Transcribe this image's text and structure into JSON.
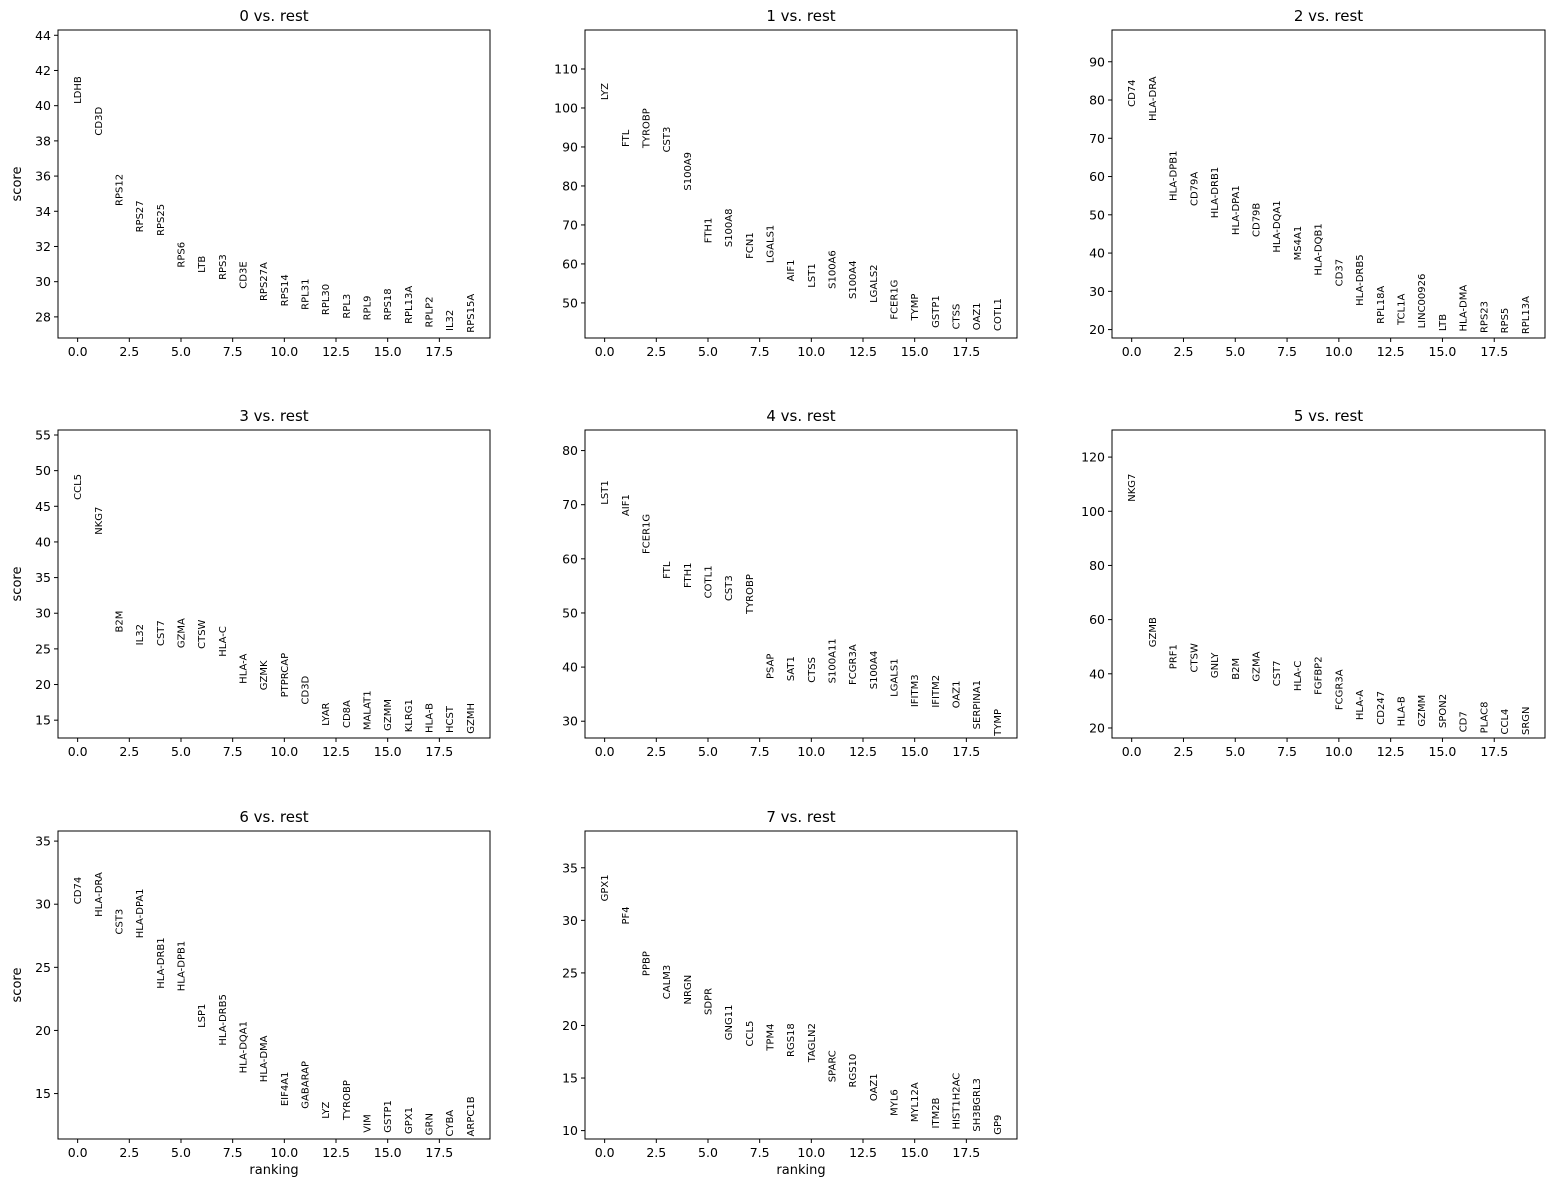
{
  "chart_data": [
    {
      "type": "scatter",
      "title": "0 vs. rest",
      "ylabel": "score",
      "xlabel": "",
      "xlim": [
        -0.95,
        19.95
      ],
      "ylim": [
        26.8,
        44.3
      ],
      "xticks": [
        "0.0",
        "2.5",
        "5.0",
        "7.5",
        "10.0",
        "12.5",
        "15.0",
        "17.5"
      ],
      "xtick_values": [
        0,
        2.5,
        5,
        7.5,
        10,
        12.5,
        15,
        17.5
      ],
      "yticks": [
        "28",
        "30",
        "32",
        "34",
        "36",
        "38",
        "40",
        "42",
        "44"
      ],
      "ytick_values": [
        28,
        30,
        32,
        34,
        36,
        38,
        40,
        42,
        44
      ],
      "genes": [
        "LDHB",
        "CD3D",
        "RPS12",
        "RPS27",
        "RPS25",
        "RPS6",
        "LTB",
        "RPS3",
        "CD3E",
        "RPS27A",
        "RPS14",
        "RPL31",
        "RPL30",
        "RPL3",
        "RPL9",
        "RPS18",
        "RPL13A",
        "RPLP2",
        "IL32",
        "RPS15A"
      ],
      "scores": [
        40.1,
        38.3,
        34.3,
        32.8,
        32.6,
        30.8,
        30.5,
        30.1,
        29.6,
        28.9,
        28.6,
        28.4,
        28.1,
        27.9,
        27.8,
        27.8,
        27.6,
        27.4,
        27.2,
        27.1
      ]
    },
    {
      "type": "scatter",
      "title": "1 vs. rest",
      "ylabel": "",
      "xlabel": "",
      "xlim": [
        -0.95,
        19.95
      ],
      "ylim": [
        41,
        120
      ],
      "xticks": [
        "0.0",
        "2.5",
        "5.0",
        "7.5",
        "10.0",
        "12.5",
        "15.0",
        "17.5"
      ],
      "xtick_values": [
        0,
        2.5,
        5,
        7.5,
        10,
        12.5,
        15,
        17.5
      ],
      "yticks": [
        "50",
        "60",
        "70",
        "80",
        "90",
        "100",
        "110"
      ],
      "ytick_values": [
        50,
        60,
        70,
        80,
        90,
        100,
        110
      ],
      "genes": [
        "LYZ",
        "FTL",
        "TYROBP",
        "CST3",
        "S100A9",
        "FTH1",
        "S100A8",
        "FCN1",
        "LGALS1",
        "AIF1",
        "LST1",
        "S100A6",
        "S100A4",
        "LGALS2",
        "FCER1G",
        "TYMP",
        "GSTP1",
        "CTSS",
        "OAZ1",
        "COTL1"
      ],
      "scores": [
        102,
        90,
        89.7,
        88.6,
        78.8,
        65.3,
        64.3,
        61.3,
        60.2,
        55.5,
        53.9,
        53.6,
        51,
        50,
        45.7,
        45.5,
        43.6,
        43.2,
        43.0,
        42.8
      ]
    },
    {
      "type": "scatter",
      "title": "2 vs. rest",
      "ylabel": "",
      "xlabel": "",
      "xlim": [
        -0.95,
        19.95
      ],
      "ylim": [
        17.8,
        98.3
      ],
      "xticks": [
        "0.0",
        "2.5",
        "5.0",
        "7.5",
        "10.0",
        "12.5",
        "15.0",
        "17.5"
      ],
      "xtick_values": [
        0,
        2.5,
        5,
        7.5,
        10,
        12.5,
        15,
        17.5
      ],
      "yticks": [
        "20",
        "30",
        "40",
        "50",
        "60",
        "70",
        "80",
        "90"
      ],
      "ytick_values": [
        20,
        30,
        40,
        50,
        60,
        70,
        80,
        90
      ],
      "genes": [
        "CD74",
        "HLA-DRA",
        "HLA-DPB1",
        "CD79A",
        "HLA-DRB1",
        "HLA-DPA1",
        "CD79B",
        "HLA-DQA1",
        "MS4A1",
        "HLA-DQB1",
        "CD37",
        "HLA-DRB5",
        "RPL18A",
        "TCL1A",
        "LINC00926",
        "LTB",
        "HLA-DMA",
        "RPS23",
        "RPS5",
        "RPL13A"
      ],
      "scores": [
        78.2,
        74.5,
        53.6,
        52.3,
        49.1,
        44.7,
        44.2,
        40.1,
        38.1,
        34.1,
        31.3,
        26.2,
        21.5,
        21.2,
        20.3,
        19.6,
        19.5,
        19.1,
        19.0,
        18.8
      ]
    },
    {
      "type": "scatter",
      "title": "3 vs. rest",
      "ylabel": "score",
      "xlabel": "",
      "xlim": [
        -0.95,
        19.95
      ],
      "ylim": [
        12.5,
        55.7
      ],
      "xticks": [
        "0.0",
        "2.5",
        "5.0",
        "7.5",
        "10.0",
        "12.5",
        "15.0",
        "17.5"
      ],
      "xtick_values": [
        0,
        2.5,
        5,
        7.5,
        10,
        12.5,
        15,
        17.5
      ],
      "yticks": [
        "15",
        "20",
        "25",
        "30",
        "35",
        "40",
        "45",
        "50",
        "55"
      ],
      "ytick_values": [
        15,
        20,
        25,
        30,
        35,
        40,
        45,
        50,
        55
      ],
      "genes": [
        "CCL5",
        "NKG7",
        "B2M",
        "IL32",
        "CST7",
        "GZMA",
        "CTSW",
        "HLA-C",
        "HLA-A",
        "GZMK",
        "PTPRCAP",
        "CD3D",
        "LYAR",
        "CD8A",
        "MALAT1",
        "GZMM",
        "KLRG1",
        "HLA-B",
        "HCST",
        "GZMH"
      ],
      "scores": [
        45.9,
        41.0,
        27.3,
        25.5,
        25.4,
        25.1,
        25.0,
        23.9,
        20.1,
        19.2,
        18.2,
        17.2,
        14.2,
        13.9,
        13.6,
        13.5,
        13.3,
        13.2,
        13.2,
        13.1
      ]
    },
    {
      "type": "scatter",
      "title": "4 vs. rest",
      "ylabel": "",
      "xlabel": "",
      "xlim": [
        -0.95,
        19.95
      ],
      "ylim": [
        26.9,
        83.8
      ],
      "xticks": [
        "0.0",
        "2.5",
        "5.0",
        "7.5",
        "10.0",
        "12.5",
        "15.0",
        "17.5"
      ],
      "xtick_values": [
        0,
        2.5,
        5,
        7.5,
        10,
        12.5,
        15,
        17.5
      ],
      "yticks": [
        "30",
        "40",
        "50",
        "60",
        "70",
        "80"
      ],
      "ytick_values": [
        30,
        40,
        50,
        60,
        70,
        80
      ],
      "genes": [
        "LST1",
        "AIF1",
        "FCER1G",
        "FTL",
        "FTH1",
        "COTL1",
        "CST3",
        "TYROBP",
        "PSAP",
        "SAT1",
        "CTSS",
        "S100A11",
        "FCGR3A",
        "S100A4",
        "LGALS1",
        "IFITM3",
        "IFITM2",
        "OAZ1",
        "SERPINA1",
        "TYMP"
      ],
      "scores": [
        70.0,
        67.9,
        60.9,
        56.3,
        54.6,
        52.7,
        52.2,
        49.8,
        37.8,
        37.4,
        37.1,
        37.0,
        36.7,
        35.9,
        34.5,
        32.6,
        32.5,
        32.4,
        28.5,
        27.3
      ]
    },
    {
      "type": "scatter",
      "title": "5 vs. rest",
      "ylabel": "",
      "xlabel": "",
      "xlim": [
        -0.95,
        19.95
      ],
      "ylim": [
        16.3,
        130
      ],
      "xticks": [
        "0.0",
        "2.5",
        "5.0",
        "7.5",
        "10.0",
        "12.5",
        "15.0",
        "17.5"
      ],
      "xtick_values": [
        0,
        2.5,
        5,
        7.5,
        10,
        12.5,
        15,
        17.5
      ],
      "yticks": [
        "20",
        "40",
        "60",
        "80",
        "100",
        "120"
      ],
      "ytick_values": [
        20,
        40,
        60,
        80,
        100,
        120
      ],
      "genes": [
        "NKG7",
        "GZMB",
        "PRF1",
        "CTSW",
        "GNLY",
        "B2M",
        "GZMA",
        "CST7",
        "HLA-C",
        "FGFBP2",
        "FCGR3A",
        "HLA-A",
        "CD247",
        "HLA-B",
        "GZMM",
        "SPON2",
        "CD7",
        "PLAC8",
        "CCL4",
        "SRGN"
      ],
      "scores": [
        103.5,
        49.8,
        41.7,
        40.5,
        38.4,
        37.8,
        37.1,
        35.4,
        33.6,
        32.2,
        26.6,
        22.9,
        21.2,
        20.6,
        20.5,
        20.0,
        18.4,
        18.0,
        17.6,
        17.4
      ]
    },
    {
      "type": "scatter",
      "title": "6 vs. rest",
      "ylabel": "score",
      "xlabel": "ranking",
      "xlim": [
        -0.95,
        19.95
      ],
      "ylim": [
        11.4,
        35.8
      ],
      "xticks": [
        "0.0",
        "2.5",
        "5.0",
        "7.5",
        "10.0",
        "12.5",
        "15.0",
        "17.5"
      ],
      "xtick_values": [
        0,
        2.5,
        5,
        7.5,
        10,
        12.5,
        15,
        17.5
      ],
      "yticks": [
        "15",
        "20",
        "25",
        "30",
        "35"
      ],
      "ytick_values": [
        15,
        20,
        25,
        30,
        35
      ],
      "genes": [
        "CD74",
        "HLA-DRA",
        "CST3",
        "HLA-DPA1",
        "HLA-DRB1",
        "HLA-DPB1",
        "LSP1",
        "HLA-DRB5",
        "HLA-DQA1",
        "HLA-DMA",
        "EIF4A1",
        "GABARAP",
        "LYZ",
        "TYROBP",
        "VIM",
        "GSTP1",
        "GPX1",
        "GRN",
        "CYBA",
        "ARPC1B"
      ],
      "scores": [
        30.0,
        29.0,
        27.6,
        27.3,
        23.3,
        23.1,
        20.2,
        18.8,
        16.6,
        15.9,
        14.0,
        13.8,
        13.0,
        12.9,
        11.9,
        11.9,
        11.8,
        11.7,
        11.6,
        11.6
      ]
    },
    {
      "type": "scatter",
      "title": "7 vs. rest",
      "ylabel": "",
      "xlabel": "ranking",
      "xlim": [
        -0.95,
        19.95
      ],
      "ylim": [
        9.2,
        38.5
      ],
      "xticks": [
        "0.0",
        "2.5",
        "5.0",
        "7.5",
        "10.0",
        "12.5",
        "15.0",
        "17.5"
      ],
      "xtick_values": [
        0,
        2.5,
        5,
        7.5,
        10,
        12.5,
        15,
        17.5
      ],
      "yticks": [
        "10",
        "15",
        "20",
        "25",
        "30",
        "35"
      ],
      "ytick_values": [
        10,
        15,
        20,
        25,
        30,
        35
      ],
      "genes": [
        "GPX1",
        "PF4",
        "PPBP",
        "CALM3",
        "NRGN",
        "SDPR",
        "GNG11",
        "CCL5",
        "TPM4",
        "RGS18",
        "TAGLN2",
        "SPARC",
        "RGS10",
        "OAZ1",
        "MYL6",
        "MYL12A",
        "ITM2B",
        "HIST1H2AC",
        "SH3BGRL3",
        "GP9"
      ],
      "scores": [
        31.8,
        29.6,
        24.7,
        22.5,
        22.0,
        21.0,
        18.6,
        18.0,
        17.6,
        17.0,
        16.5,
        14.6,
        14.1,
        12.8,
        11.4,
        10.8,
        10.2,
        10.1,
        9.9,
        9.6
      ]
    }
  ]
}
